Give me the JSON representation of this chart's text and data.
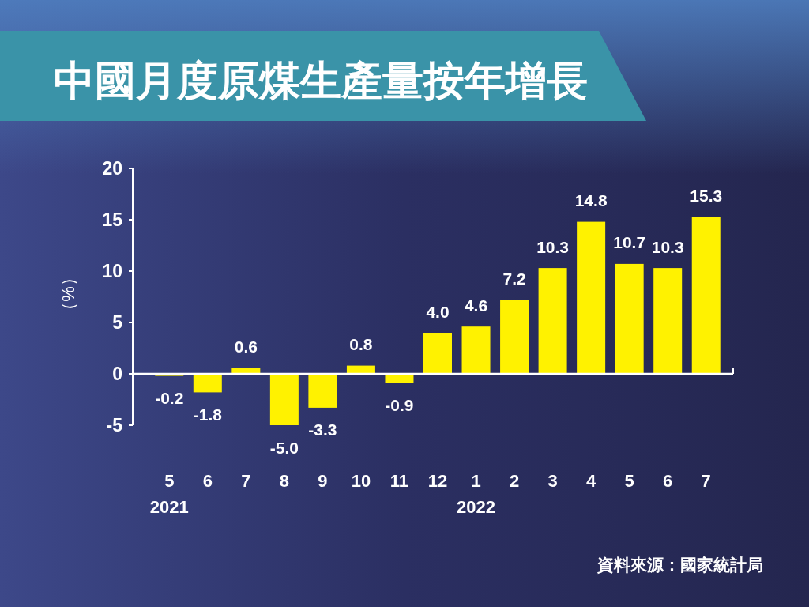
{
  "chart_data": {
    "type": "bar",
    "title": "中國月度原煤生產量按年增長",
    "ylabel": "（%）",
    "categories": [
      "5\n2021",
      "6",
      "7",
      "8",
      "9",
      "10",
      "11",
      "12",
      "1\n2022",
      "2",
      "3",
      "4",
      "5",
      "6",
      "7"
    ],
    "values": [
      -0.2,
      -1.8,
      0.6,
      -5.0,
      -3.3,
      0.8,
      -0.9,
      4.0,
      4.6,
      7.2,
      10.3,
      14.8,
      10.7,
      10.3,
      15.3
    ],
    "value_labels": [
      "-0.2",
      "-1.8",
      "0.6",
      "-5.0",
      "-3.3",
      "0.8",
      "-0.9",
      "4.0",
      "4.6",
      "7.2",
      "10.3",
      "14.8",
      "10.7",
      "10.3",
      "15.3"
    ],
    "color": "#fff200",
    "ylim": [
      -5,
      20
    ],
    "yticks": [
      -5,
      0,
      5,
      10,
      15,
      20
    ],
    "annotations": [
      "資料來源：國家統計局"
    ]
  }
}
